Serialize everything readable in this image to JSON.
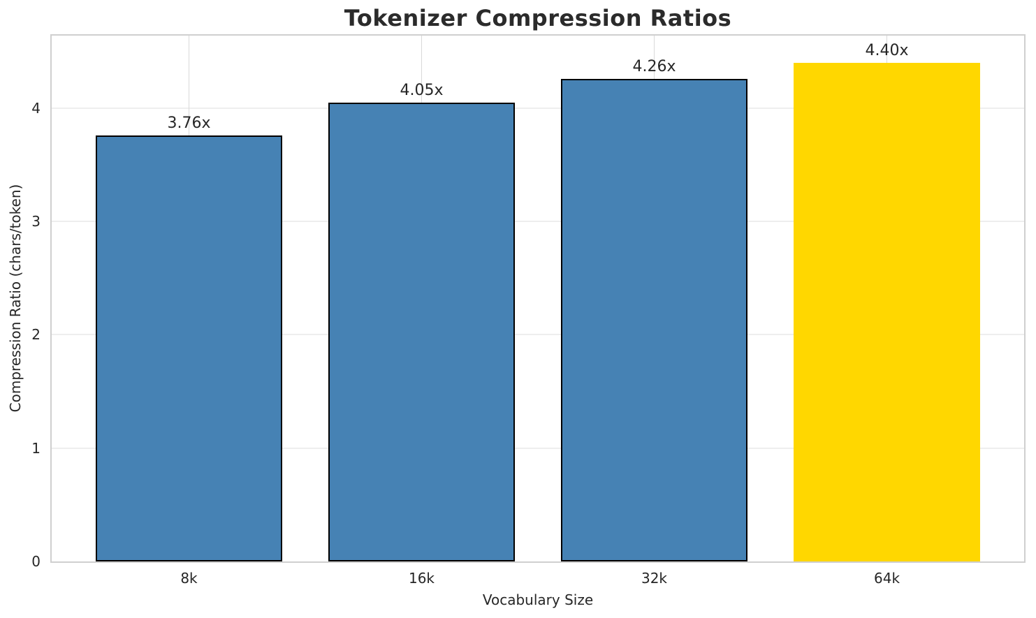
{
  "chart_data": {
    "type": "bar",
    "title": "Tokenizer Compression Ratios",
    "xlabel": "Vocabulary Size",
    "ylabel": "Compression Ratio (chars/token)",
    "categories": [
      "8k",
      "16k",
      "32k",
      "64k"
    ],
    "values": [
      3.76,
      4.05,
      4.26,
      4.4
    ],
    "bar_labels": [
      "3.76x",
      "4.05x",
      "4.26x",
      "4.40x"
    ],
    "bar_colors": [
      "#4682B4",
      "#4682B4",
      "#4682B4",
      "#FFD700"
    ],
    "bar_edge_colors": [
      "#000000",
      "#000000",
      "#000000",
      "none"
    ],
    "yticks": [
      0,
      1,
      2,
      3,
      4
    ],
    "ylim": [
      0,
      4.64
    ],
    "bar_width_fraction": 0.8,
    "grid": true,
    "legend_position": "none",
    "colors": {
      "bar_default": "#4682B4",
      "bar_highlight": "#FFD700",
      "bar_edge": "#000000",
      "grid_horizontal": "#eeeeee",
      "grid_vertical": "#d9d9d9",
      "spine": "#cfcfcf",
      "text": "#262626",
      "background": "#ffffff"
    }
  }
}
